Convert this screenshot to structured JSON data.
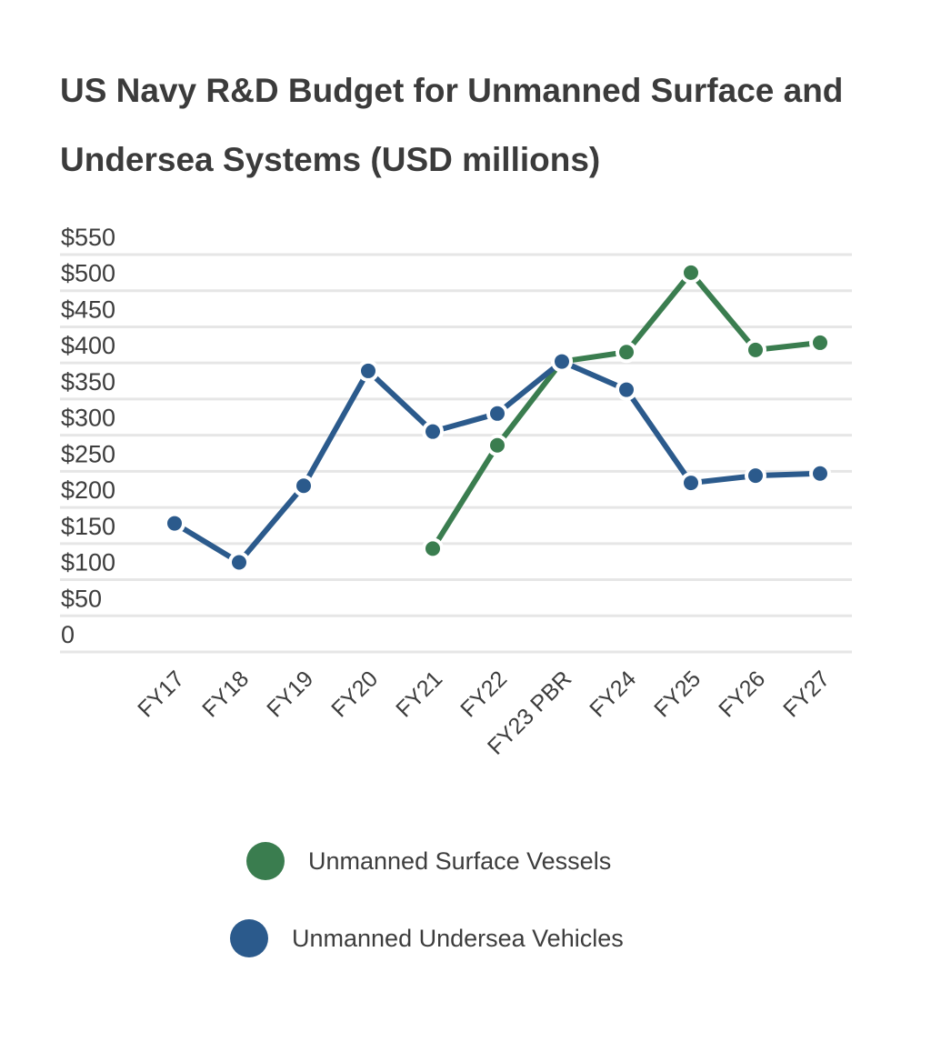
{
  "chart_data": {
    "type": "line",
    "title": "US Navy R&D Budget for Unmanned Surface and Undersea Systems (USD millions)",
    "xlabel": "",
    "ylabel": "",
    "categories": [
      "FY17",
      "FY18",
      "FY19",
      "FY20",
      "FY21",
      "FY22",
      "FY23 PBR",
      "FY24",
      "FY25",
      "FY26",
      "FY27"
    ],
    "ylim": [
      0,
      550
    ],
    "yticks": [
      0,
      50,
      100,
      150,
      200,
      250,
      300,
      350,
      400,
      450,
      500,
      550
    ],
    "ytick_labels": [
      "0",
      "$50",
      "$100",
      "$150",
      "$200",
      "$250",
      "$300",
      "$350",
      "$400",
      "$450",
      "$500",
      "$550"
    ],
    "grid": true,
    "legend_position": "bottom",
    "series": [
      {
        "name": "Unmanned Surface Vessels",
        "color": "#3a7d4f",
        "values": [
          null,
          null,
          null,
          null,
          143,
          286,
          402,
          415,
          525,
          418,
          428
        ]
      },
      {
        "name": "Unmanned Undersea Vehicles",
        "color": "#2b5a8c",
        "values": [
          178,
          124,
          230,
          389,
          305,
          330,
          402,
          363,
          234,
          244,
          247
        ]
      }
    ]
  }
}
